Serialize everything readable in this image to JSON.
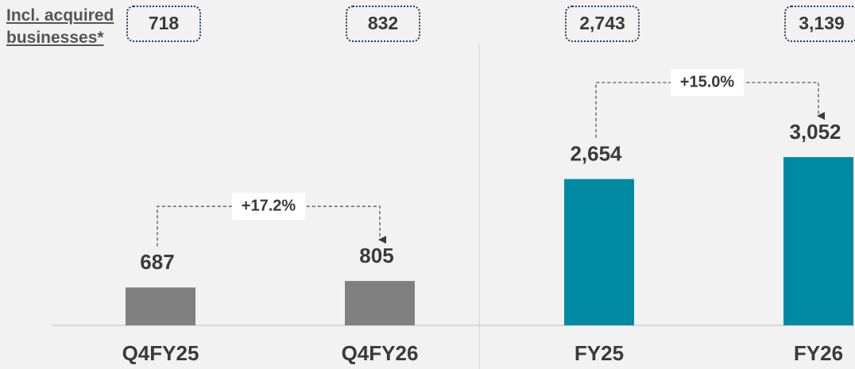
{
  "chart_data": {
    "type": "bar",
    "categories": [
      "Q4FY25",
      "Q4FY26",
      "FY25",
      "FY26"
    ],
    "values": [
      687,
      805,
      2654,
      3052
    ],
    "value_labels": [
      "687",
      "805",
      "2,654",
      "3,052"
    ],
    "colors": [
      "#808080",
      "#808080",
      "#0089a3",
      "#0089a3"
    ],
    "acquired": {
      "label": "Incl. acquired businesses*",
      "values": [
        718,
        832,
        2743,
        3139
      ],
      "value_labels": [
        "718",
        "832",
        "2,743",
        "3,139"
      ]
    },
    "growth": [
      {
        "value": 17.2,
        "label": "+17.2%"
      },
      {
        "value": 15.0,
        "label": "+15.0%"
      }
    ]
  }
}
